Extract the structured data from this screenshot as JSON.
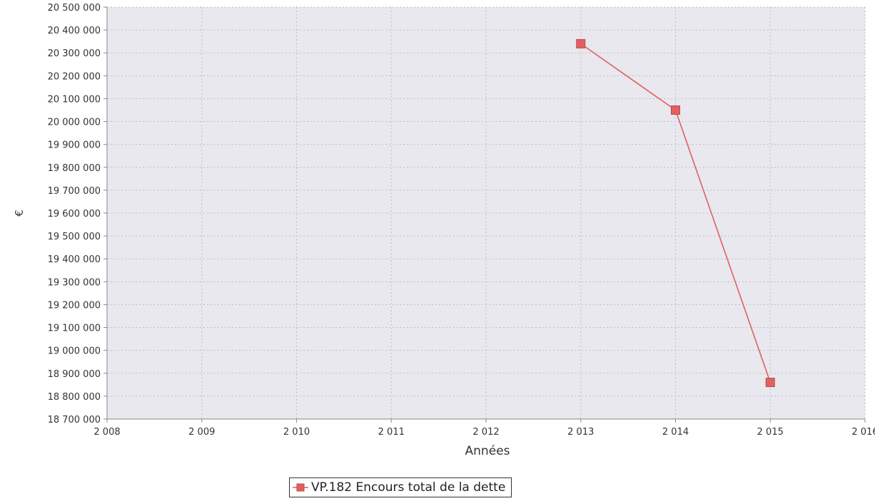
{
  "chart_data": {
    "type": "line",
    "title": "",
    "xlabel": "Années",
    "ylabel": "€",
    "xlim": [
      2008,
      2016
    ],
    "ylim": [
      18700000,
      20500000
    ],
    "x_ticks": [
      "2 008",
      "2 009",
      "2 010",
      "2 011",
      "2 012",
      "2 013",
      "2 014",
      "2 015",
      "2 016"
    ],
    "y_ticks": [
      "18 700 000",
      "18 800 000",
      "18 900 000",
      "19 000 000",
      "19 100 000",
      "19 200 000",
      "19 300 000",
      "19 400 000",
      "19 500 000",
      "19 600 000",
      "19 700 000",
      "19 800 000",
      "19 900 000",
      "20 000 000",
      "20 100 000",
      "20 200 000",
      "20 300 000",
      "20 400 000",
      "20 500 000"
    ],
    "grid": true,
    "legend_position": "bottom-center",
    "series": [
      {
        "name": "VP.182 Encours total de la dette",
        "color": "#e06060",
        "marker": "square",
        "x": [
          2013,
          2014,
          2015
        ],
        "y": [
          20340000,
          20050000,
          18860000
        ]
      }
    ]
  },
  "colors": {
    "plot_background": "#e8e8ee",
    "grid": "#bdbdc4",
    "series": "#e06060"
  }
}
